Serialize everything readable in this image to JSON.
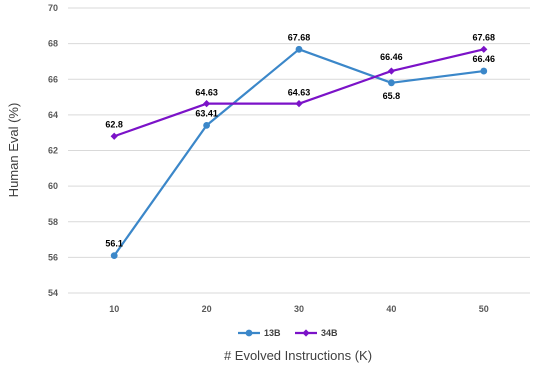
{
  "chart_data": {
    "type": "line",
    "title": "",
    "xlabel": "# Evolved Instructions (K)",
    "ylabel": "Human Eval (%)",
    "categories": [
      "10",
      "20",
      "30",
      "40",
      "50"
    ],
    "x": [
      10,
      20,
      30,
      40,
      50
    ],
    "ylim": [
      54,
      70
    ],
    "yticks": [
      54,
      56,
      58,
      60,
      62,
      64,
      66,
      68,
      70
    ],
    "grid": true,
    "legend": "bottom",
    "series": [
      {
        "name": "13B",
        "color": "#3b87c9",
        "marker": "circle",
        "values": [
          56.1,
          63.41,
          67.68,
          65.8,
          66.46
        ]
      },
      {
        "name": "34B",
        "color": "#7b12c8",
        "marker": "diamond",
        "values": [
          62.8,
          64.63,
          64.63,
          66.46,
          67.68
        ]
      }
    ]
  }
}
